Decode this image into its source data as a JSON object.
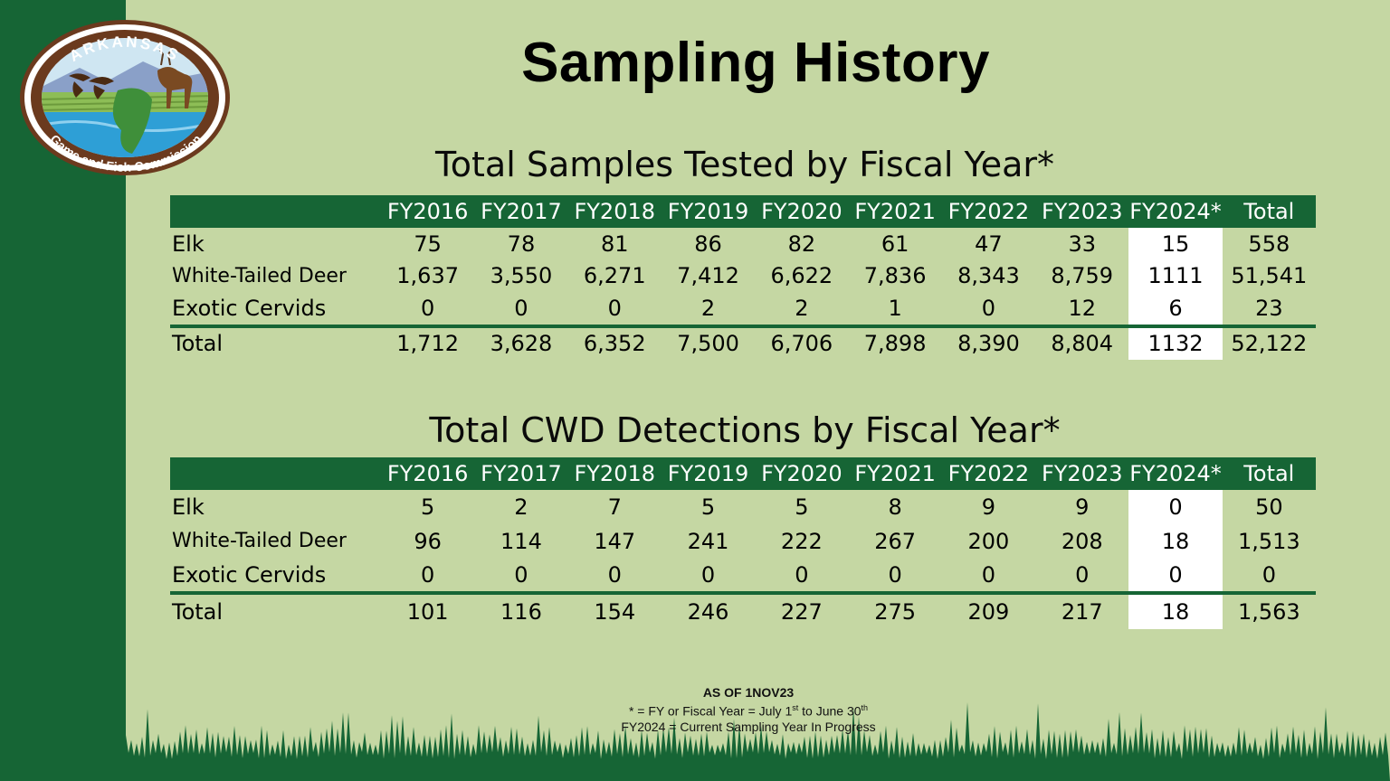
{
  "logo": {
    "top_text": "ARKANSAS",
    "bottom_text": "Game and Fish Commission"
  },
  "title": "Sampling History",
  "tables": [
    {
      "title": "Total Samples Tested by Fiscal Year*",
      "columns": [
        "FY2016",
        "FY2017",
        "FY2018",
        "FY2019",
        "FY2020",
        "FY2021",
        "FY2022",
        "FY2023",
        "FY2024*",
        "Total"
      ],
      "rows": [
        {
          "label": "Elk",
          "values": [
            "75",
            "78",
            "81",
            "86",
            "82",
            "61",
            "47",
            "33",
            "15",
            "558"
          ]
        },
        {
          "label": "White-Tailed Deer",
          "values": [
            "1,637",
            "3,550",
            "6,271",
            "7,412",
            "6,622",
            "7,836",
            "8,343",
            "8,759",
            "1111",
            "51,541"
          ]
        },
        {
          "label": "Exotic Cervids",
          "values": [
            "0",
            "0",
            "0",
            "2",
            "2",
            "1",
            "0",
            "12",
            "6",
            "23"
          ]
        }
      ],
      "total": {
        "label": "Total",
        "values": [
          "1,712",
          "3,628",
          "6,352",
          "7,500",
          "6,706",
          "7,898",
          "8,390",
          "8,804",
          "1132",
          "52,122"
        ]
      }
    },
    {
      "title": "Total CWD Detections by Fiscal Year*",
      "columns": [
        "FY2016",
        "FY2017",
        "FY2018",
        "FY2019",
        "FY2020",
        "FY2021",
        "FY2022",
        "FY2023",
        "FY2024*",
        "Total"
      ],
      "rows": [
        {
          "label": "Elk",
          "values": [
            "5",
            "2",
            "7",
            "5",
            "5",
            "8",
            "9",
            "9",
            "0",
            "50"
          ]
        },
        {
          "label": "White-Tailed Deer",
          "values": [
            "96",
            "114",
            "147",
            "241",
            "222",
            "267",
            "200",
            "208",
            "18",
            "1,513"
          ]
        },
        {
          "label": "Exotic Cervids",
          "values": [
            "0",
            "0",
            "0",
            "0",
            "0",
            "0",
            "0",
            "0",
            "0",
            "0"
          ]
        }
      ],
      "total": {
        "label": "Total",
        "values": [
          "101",
          "116",
          "154",
          "246",
          "227",
          "275",
          "209",
          "217",
          "18",
          "1,563"
        ]
      }
    }
  ],
  "footnote": {
    "as_of": "AS OF 1NOV23",
    "fy_def_prefix": "* = FY or Fiscal Year = July 1",
    "fy_def_sup1": "st",
    "fy_def_mid": " to June 30",
    "fy_def_sup2": "th",
    "current": "FY2024 = Current Sampling Year In Progress"
  },
  "colors": {
    "background": "#c5d7a3",
    "brand_green": "#166535",
    "highlight": "#ffffff"
  }
}
